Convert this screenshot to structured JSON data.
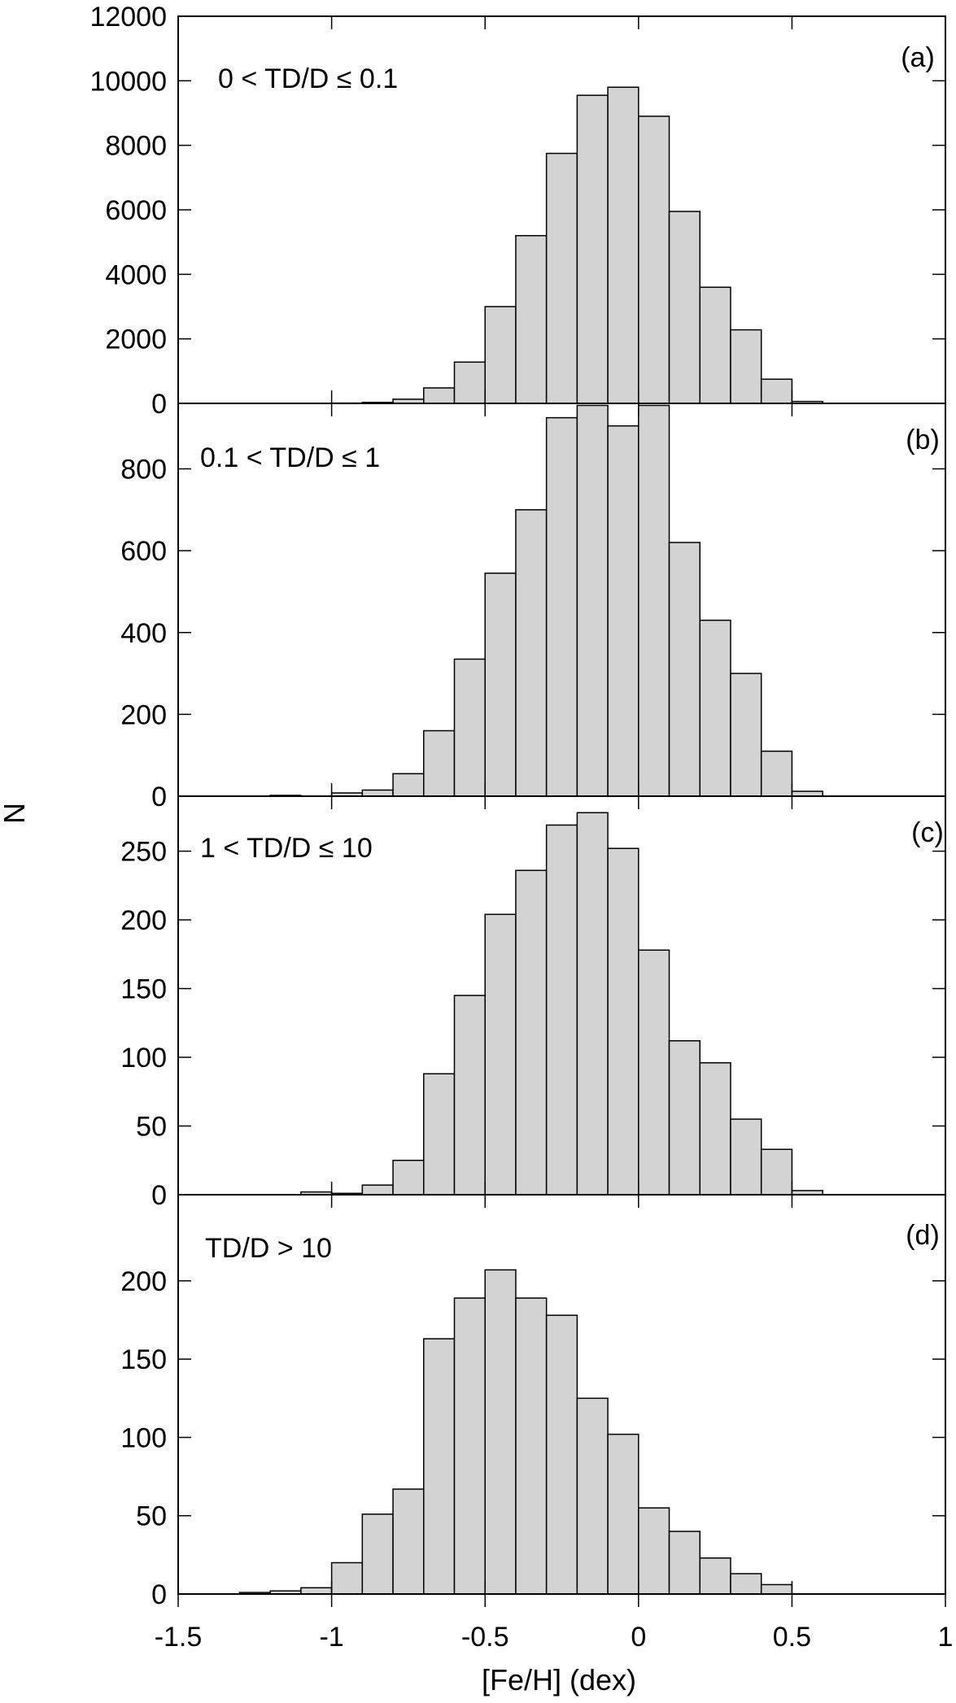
{
  "chart_data": {
    "type": "bar",
    "xlabel": "[Fe/H] (dex)",
    "ylabel": "N",
    "xlim": [
      -1.5,
      1
    ],
    "xticks": [
      "-1.5",
      "-1",
      "-0.5",
      "0",
      "0.5",
      "1"
    ],
    "xtick_values": [
      -1.5,
      -1,
      -0.5,
      0,
      0.5,
      1
    ],
    "bin_width": 0.1,
    "bin_left_edges": [
      -1.3,
      -1.2,
      -1.1,
      -1.0,
      -0.9,
      -0.8,
      -0.7,
      -0.6,
      -0.5,
      -0.4,
      -0.3,
      -0.2,
      -0.1,
      0.0,
      0.1,
      0.2,
      0.3,
      0.4,
      0.5
    ],
    "panels": [
      {
        "tag": "(a)",
        "label": "0 < TD/D ≤ 0.1",
        "ylim": [
          0,
          12000
        ],
        "yticks": [
          0,
          2000,
          4000,
          6000,
          8000,
          10000,
          12000
        ],
        "yticks_labelled": [
          0,
          2000,
          4000,
          6000,
          8000,
          10000,
          12000
        ],
        "values": [
          0,
          0,
          0,
          10,
          30,
          130,
          480,
          1280,
          3000,
          5200,
          7750,
          9550,
          9800,
          8900,
          5950,
          3600,
          2280,
          750,
          60
        ]
      },
      {
        "tag": "(b)",
        "label": "0.1 < TD/D ≤ 1",
        "ylim": [
          0,
          960
        ],
        "yticks": [
          0,
          200,
          400,
          600,
          800
        ],
        "yticks_labelled": [
          0,
          200,
          400,
          600,
          800
        ],
        "values": [
          0,
          2,
          0,
          8,
          15,
          55,
          160,
          335,
          545,
          700,
          925,
          955,
          905,
          955,
          620,
          430,
          300,
          110,
          12
        ]
      },
      {
        "tag": "(c)",
        "label": "1 < TD/D ≤ 10",
        "ylim": [
          0,
          290
        ],
        "yticks": [
          0,
          50,
          100,
          150,
          200,
          250
        ],
        "yticks_labelled": [
          0,
          50,
          100,
          150,
          200,
          250
        ],
        "values": [
          0,
          0,
          2,
          1,
          7,
          25,
          88,
          145,
          204,
          236,
          269,
          278,
          252,
          178,
          112,
          96,
          55,
          33,
          3
        ]
      },
      {
        "tag": "(d)",
        "label": "TD/D > 10",
        "ylim": [
          0,
          255
        ],
        "yticks": [
          0,
          50,
          100,
          150,
          200
        ],
        "yticks_labelled": [
          0,
          50,
          100,
          150,
          200
        ],
        "values": [
          1,
          2,
          4,
          20,
          51,
          67,
          163,
          189,
          207,
          189,
          178,
          125,
          102,
          55,
          40,
          23,
          13,
          6,
          0
        ]
      }
    ]
  }
}
